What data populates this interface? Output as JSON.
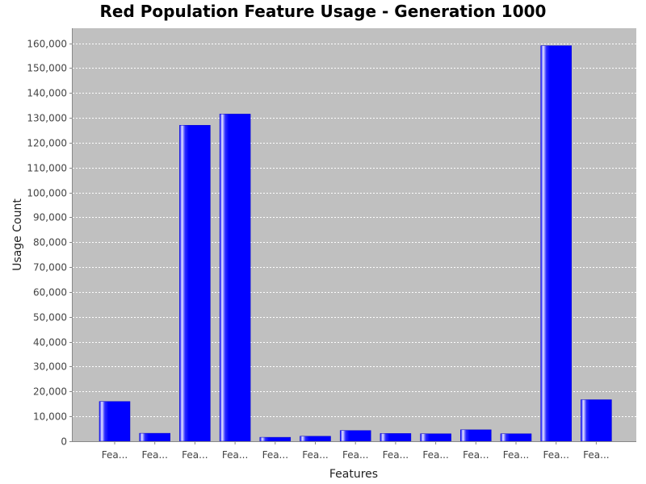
{
  "chart_data": {
    "type": "bar",
    "title": "Red Population Feature Usage - Generation 1000",
    "xlabel": "Features",
    "ylabel": "Usage Count",
    "categories": [
      "Fea...",
      "Fea...",
      "Fea...",
      "Fea...",
      "Fea...",
      "Fea...",
      "Fea...",
      "Fea...",
      "Fea...",
      "Fea...",
      "Fea...",
      "Fea...",
      "Fea..."
    ],
    "values": [
      16000,
      3200,
      127000,
      131500,
      1600,
      2000,
      4300,
      3100,
      3000,
      4600,
      3000,
      159000,
      16700
    ],
    "ylim": [
      0,
      166000
    ],
    "yticks": [
      0,
      10000,
      20000,
      30000,
      40000,
      50000,
      60000,
      70000,
      80000,
      90000,
      100000,
      110000,
      120000,
      130000,
      140000,
      150000,
      160000
    ],
    "ytick_labels": [
      "0",
      "10,000",
      "20,000",
      "30,000",
      "40,000",
      "50,000",
      "60,000",
      "70,000",
      "80,000",
      "90,000",
      "100,000",
      "110,000",
      "120,000",
      "130,000",
      "140,000",
      "150,000",
      "160,000"
    ],
    "grid": true,
    "legend": "none",
    "colors": {
      "bar": "#0000ff",
      "bar_highlight": "#d8d8ff",
      "plot_background": "#c0c0c0",
      "grid": "#ffffff",
      "axis": "#888888"
    }
  }
}
